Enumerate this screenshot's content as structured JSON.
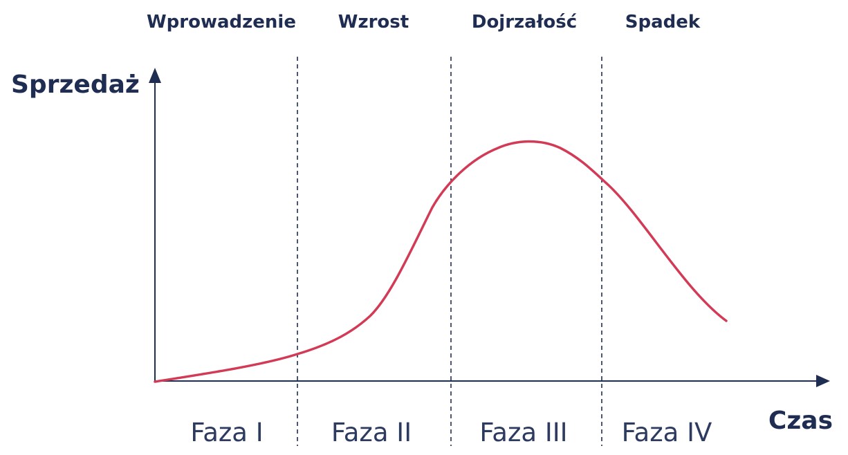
{
  "colors": {
    "text": "#1f2d52",
    "axis": "#1f2d52",
    "curve": "#d23a56",
    "phase_text": "#2d3b60",
    "divider": "#1f2d52",
    "background": "#ffffff"
  },
  "stages": [
    {
      "label": "Wprowadzenie"
    },
    {
      "label": "Wzrost"
    },
    {
      "label": "Dojrzałość"
    },
    {
      "label": "Spadek"
    }
  ],
  "phases": [
    {
      "label": "Faza I"
    },
    {
      "label": "Faza II"
    },
    {
      "label": "Faza III"
    },
    {
      "label": "Faza IV"
    }
  ],
  "axes": {
    "y_label": "Sprzedaż",
    "x_label": "Czas"
  },
  "curve": {
    "name": "sales-curve",
    "shape": "product-life-cycle"
  }
}
